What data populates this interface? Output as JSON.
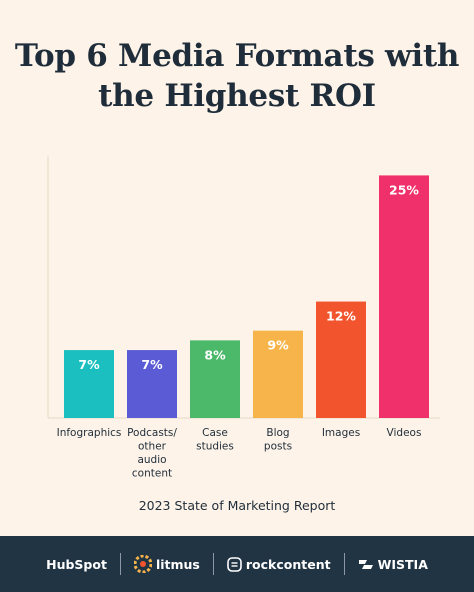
{
  "title_lines": [
    "Top 6 Media Formats with",
    "the Highest ROI"
  ],
  "source": "2023 State of Marketing Report",
  "footer": {
    "logos": [
      "HubSpot",
      "litmus",
      "rockcontent",
      "WISTIA"
    ]
  },
  "chart_data": {
    "type": "bar",
    "categories": [
      [
        "Infographics"
      ],
      [
        "Podcasts/",
        "other",
        "audio",
        "content"
      ],
      [
        "Case",
        "studies"
      ],
      [
        "Blog",
        "posts"
      ],
      [
        "Images"
      ],
      [
        "Videos"
      ]
    ],
    "values": [
      7,
      7,
      8,
      9,
      12,
      25
    ],
    "labels": [
      "7%",
      "7%",
      "8%",
      "9%",
      "12%",
      "25%"
    ],
    "colors": [
      "#1bbfbf",
      "#5b5bd6",
      "#4cb86a",
      "#f7b44a",
      "#f2542d",
      "#f0306a"
    ],
    "ylim": [
      0,
      27
    ],
    "grid": false
  }
}
